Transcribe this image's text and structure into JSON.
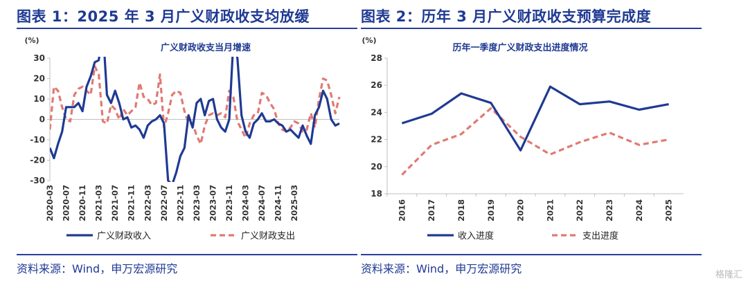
{
  "panels": [
    {
      "figure_title": "图表 1：2025 年 3 月广义财政收支均放缓",
      "source": "资料来源：Wind，申万宏源研究"
    },
    {
      "figure_title": "图表 2：历年 3 月广义财政收支预算完成度",
      "source": "资料来源：Wind，申万宏源研究"
    }
  ],
  "watermark": "格隆汇",
  "chart_data": [
    {
      "type": "line",
      "title": "广义财政收支当月增速",
      "ylabel": "(%)",
      "ylim": [
        -30,
        30
      ],
      "yticks": [
        -30,
        -20,
        -10,
        0,
        10,
        20,
        30
      ],
      "grid": false,
      "legend_position": "bottom",
      "x_tick_labels": [
        "2020-03",
        "2020-07",
        "2020-11",
        "2021-03",
        "2021-07",
        "2021-11",
        "2022-03",
        "2022-07",
        "2022-11",
        "2023-03",
        "2023-07",
        "2023-11",
        "2024-03",
        "2024-07",
        "2024-11",
        "2025-03"
      ],
      "series": [
        {
          "name": "广义财政收入",
          "color": "#1f3a93",
          "style": "solid",
          "values": [
            -14,
            -19,
            -12,
            -6,
            6,
            6,
            6,
            8,
            4,
            16,
            21,
            28,
            29,
            45,
            12,
            8,
            14,
            8,
            0,
            1,
            -4,
            -3,
            -5,
            -9,
            -3,
            -1,
            0,
            2,
            -2,
            -30,
            -32,
            -26,
            -18,
            -14,
            2,
            -4,
            8,
            10,
            2,
            9,
            10,
            0,
            -4,
            -6,
            0,
            38,
            30,
            2,
            -6,
            -9,
            -2,
            0,
            3,
            -1,
            -1,
            0,
            -2,
            -3,
            -6,
            -5,
            -7,
            -9,
            -3,
            -8,
            -12,
            2,
            6,
            14,
            10,
            0,
            -3,
            -2
          ]
        },
        {
          "name": "广义财政支出",
          "color": "#e07a72",
          "style": "dashed",
          "values": [
            -5,
            16,
            14,
            6,
            0,
            -1,
            12,
            15,
            16,
            14,
            12,
            26,
            22,
            -1,
            -2,
            7,
            5,
            0,
            5,
            2,
            4,
            6,
            18,
            11,
            10,
            7,
            8,
            22,
            -4,
            3,
            12,
            14,
            13,
            4,
            -2,
            -2,
            -8,
            -12,
            -3,
            2,
            3,
            2,
            3,
            1,
            14,
            11,
            -1,
            -5,
            -9,
            -2,
            2,
            3,
            13,
            12,
            8,
            5,
            -2,
            -5,
            -6,
            -4,
            -1,
            -2,
            -6,
            -5,
            3,
            -4,
            10,
            20,
            19,
            12,
            3,
            11
          ]
        }
      ]
    },
    {
      "type": "line",
      "title": "历年一季度广义财政支出进度情况",
      "ylabel": "(%)",
      "ylim": [
        18,
        28
      ],
      "yticks": [
        18,
        20,
        22,
        24,
        26,
        28
      ],
      "grid": false,
      "legend_position": "bottom",
      "categories": [
        "2016",
        "2017",
        "2018",
        "2019",
        "2020",
        "2021",
        "2022",
        "2023",
        "2024",
        "2025"
      ],
      "series": [
        {
          "name": "收入进度",
          "color": "#1f3a93",
          "style": "solid",
          "values": [
            23.2,
            23.9,
            25.4,
            24.7,
            21.2,
            25.9,
            24.6,
            24.8,
            24.2,
            24.6
          ]
        },
        {
          "name": "支出进度",
          "color": "#e07a72",
          "style": "dashed",
          "values": [
            19.4,
            21.6,
            22.4,
            24.3,
            22.2,
            20.9,
            21.8,
            22.5,
            21.6,
            22.0
          ]
        }
      ]
    }
  ]
}
